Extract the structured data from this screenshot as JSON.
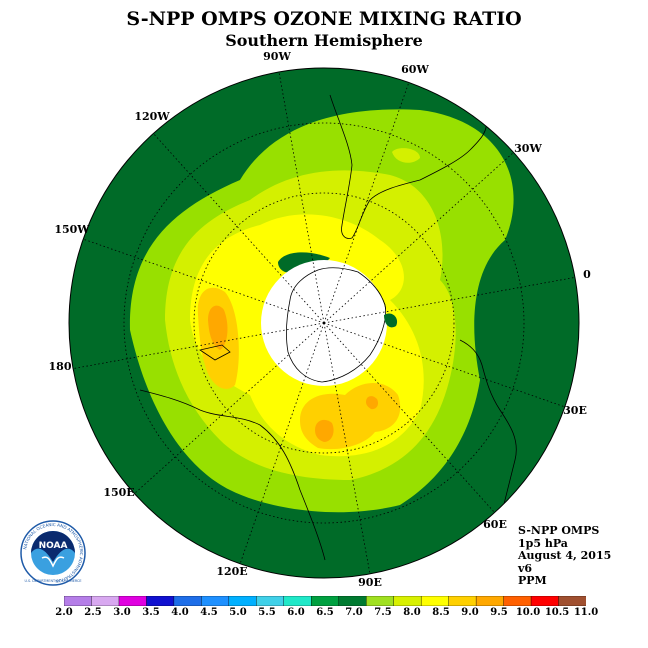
{
  "title": "S-NPP OMPS OZONE MIXING RATIO",
  "subtitle": "Southern Hemisphere",
  "longitude_labels": {
    "lon_90w": "90W",
    "lon_60w": "60W",
    "lon_30w": "30W",
    "lon_0": "0",
    "lon_30e": "30E",
    "lon_60e": "60E",
    "lon_90e": "90E",
    "lon_120e": "120E",
    "lon_150e": "150E",
    "lon_180": "180",
    "lon_150w": "150W",
    "lon_120w": "120W"
  },
  "metadata": {
    "instrument": "S-NPP OMPS",
    "pressure": "1p5 hPa",
    "date": "August 4, 2015",
    "version": "v6",
    "units": "PPM"
  },
  "logo": {
    "text": "NOAA",
    "ring_text": "NATIONAL OCEANIC AND ATMOSPHERIC ADMINISTRATION",
    "bottom_text": "U.S. DEPARTMENT OF COMMERCE"
  },
  "colorbar": {
    "ticks": [
      "2.0",
      "2.5",
      "3.0",
      "3.5",
      "4.0",
      "4.5",
      "5.0",
      "5.5",
      "6.0",
      "6.5",
      "7.0",
      "7.5",
      "8.0",
      "8.5",
      "9.0",
      "9.5",
      "10.0",
      "10.5",
      "11.0"
    ],
    "colors": [
      "#b57ee8",
      "#d8a8f0",
      "#e000e0",
      "#1010d0",
      "#1e6ee8",
      "#1e90ff",
      "#00b0ff",
      "#40d0e8",
      "#20e8c8",
      "#00a040",
      "#007a30",
      "#a0e020",
      "#d8f000",
      "#ffff00",
      "#ffd000",
      "#ffa800",
      "#ff6000",
      "#ff0000",
      "#a05030"
    ]
  },
  "map_colors": {
    "dark_green": "#006b28",
    "green": "#98e000",
    "yellow_green": "#d4f000",
    "yellow": "#ffff00",
    "gold": "#ffd000",
    "orange": "#ffa800",
    "pole_mask": "#ffffff"
  }
}
